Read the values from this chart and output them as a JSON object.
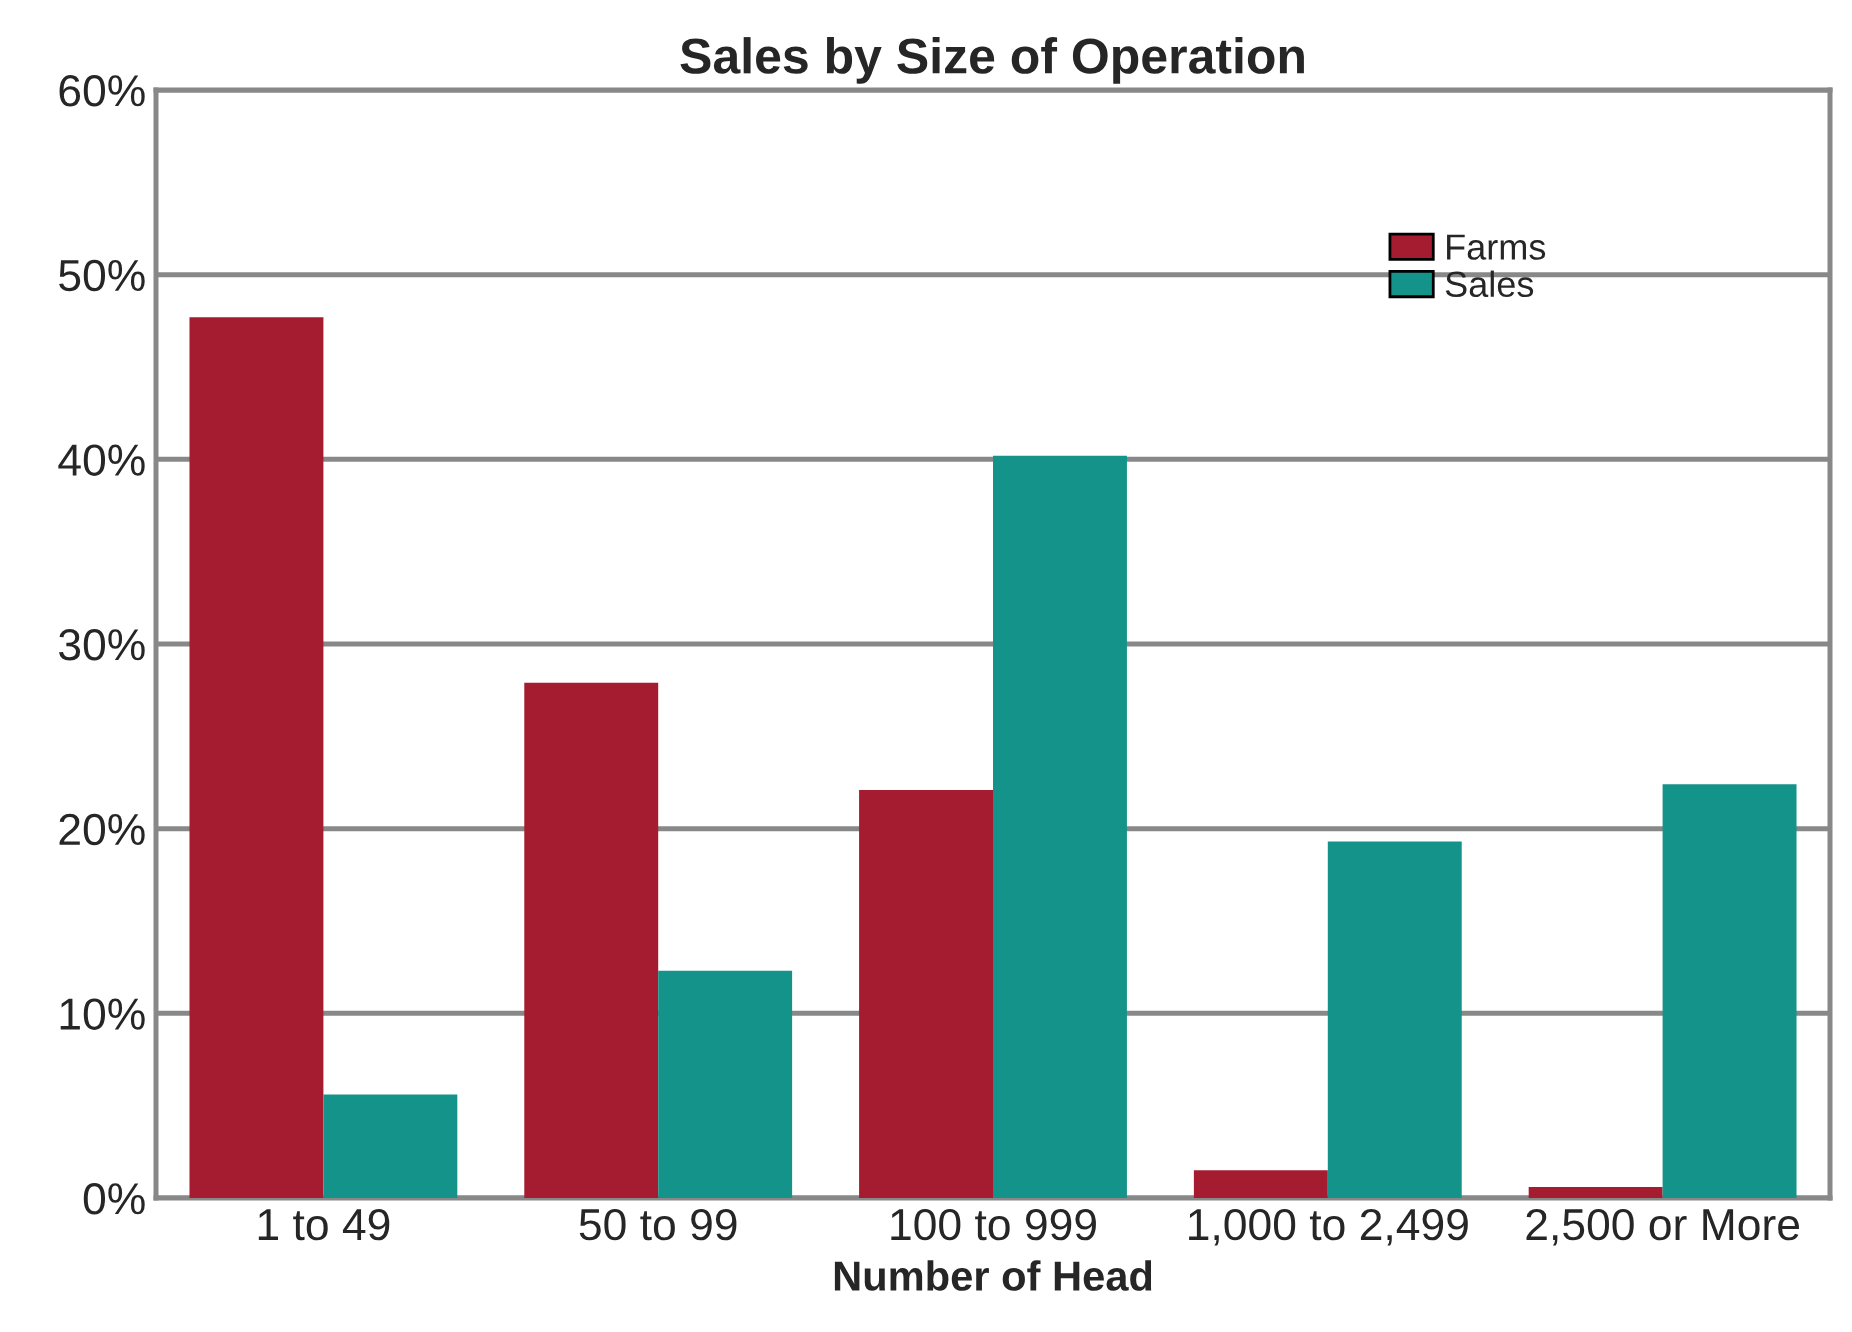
{
  "chart_data": {
    "type": "bar",
    "title": "Sales by Size of Operation",
    "xlabel": "Number of Head",
    "categories": [
      "1 to 49",
      "50 to 99",
      "100 to 999",
      "1,000 to 2,499",
      "2,500 or More"
    ],
    "series": [
      {
        "name": "Farms",
        "color": "#a51c30",
        "values": [
          47.7,
          27.9,
          22.1,
          1.5,
          0.6
        ]
      },
      {
        "name": "Sales",
        "color": "#13938a",
        "values": [
          5.6,
          12.3,
          40.2,
          19.3,
          22.4
        ]
      }
    ],
    "ylim": [
      0,
      60
    ],
    "yticks": [
      {
        "value": 0,
        "label": "0%"
      },
      {
        "value": 10,
        "label": "10%"
      },
      {
        "value": 20,
        "label": "20%"
      },
      {
        "value": 30,
        "label": "30%"
      },
      {
        "value": 40,
        "label": "40%"
      },
      {
        "value": 50,
        "label": "50%"
      },
      {
        "value": 60,
        "label": "60%"
      }
    ],
    "grid": "y",
    "legend": "top right"
  }
}
